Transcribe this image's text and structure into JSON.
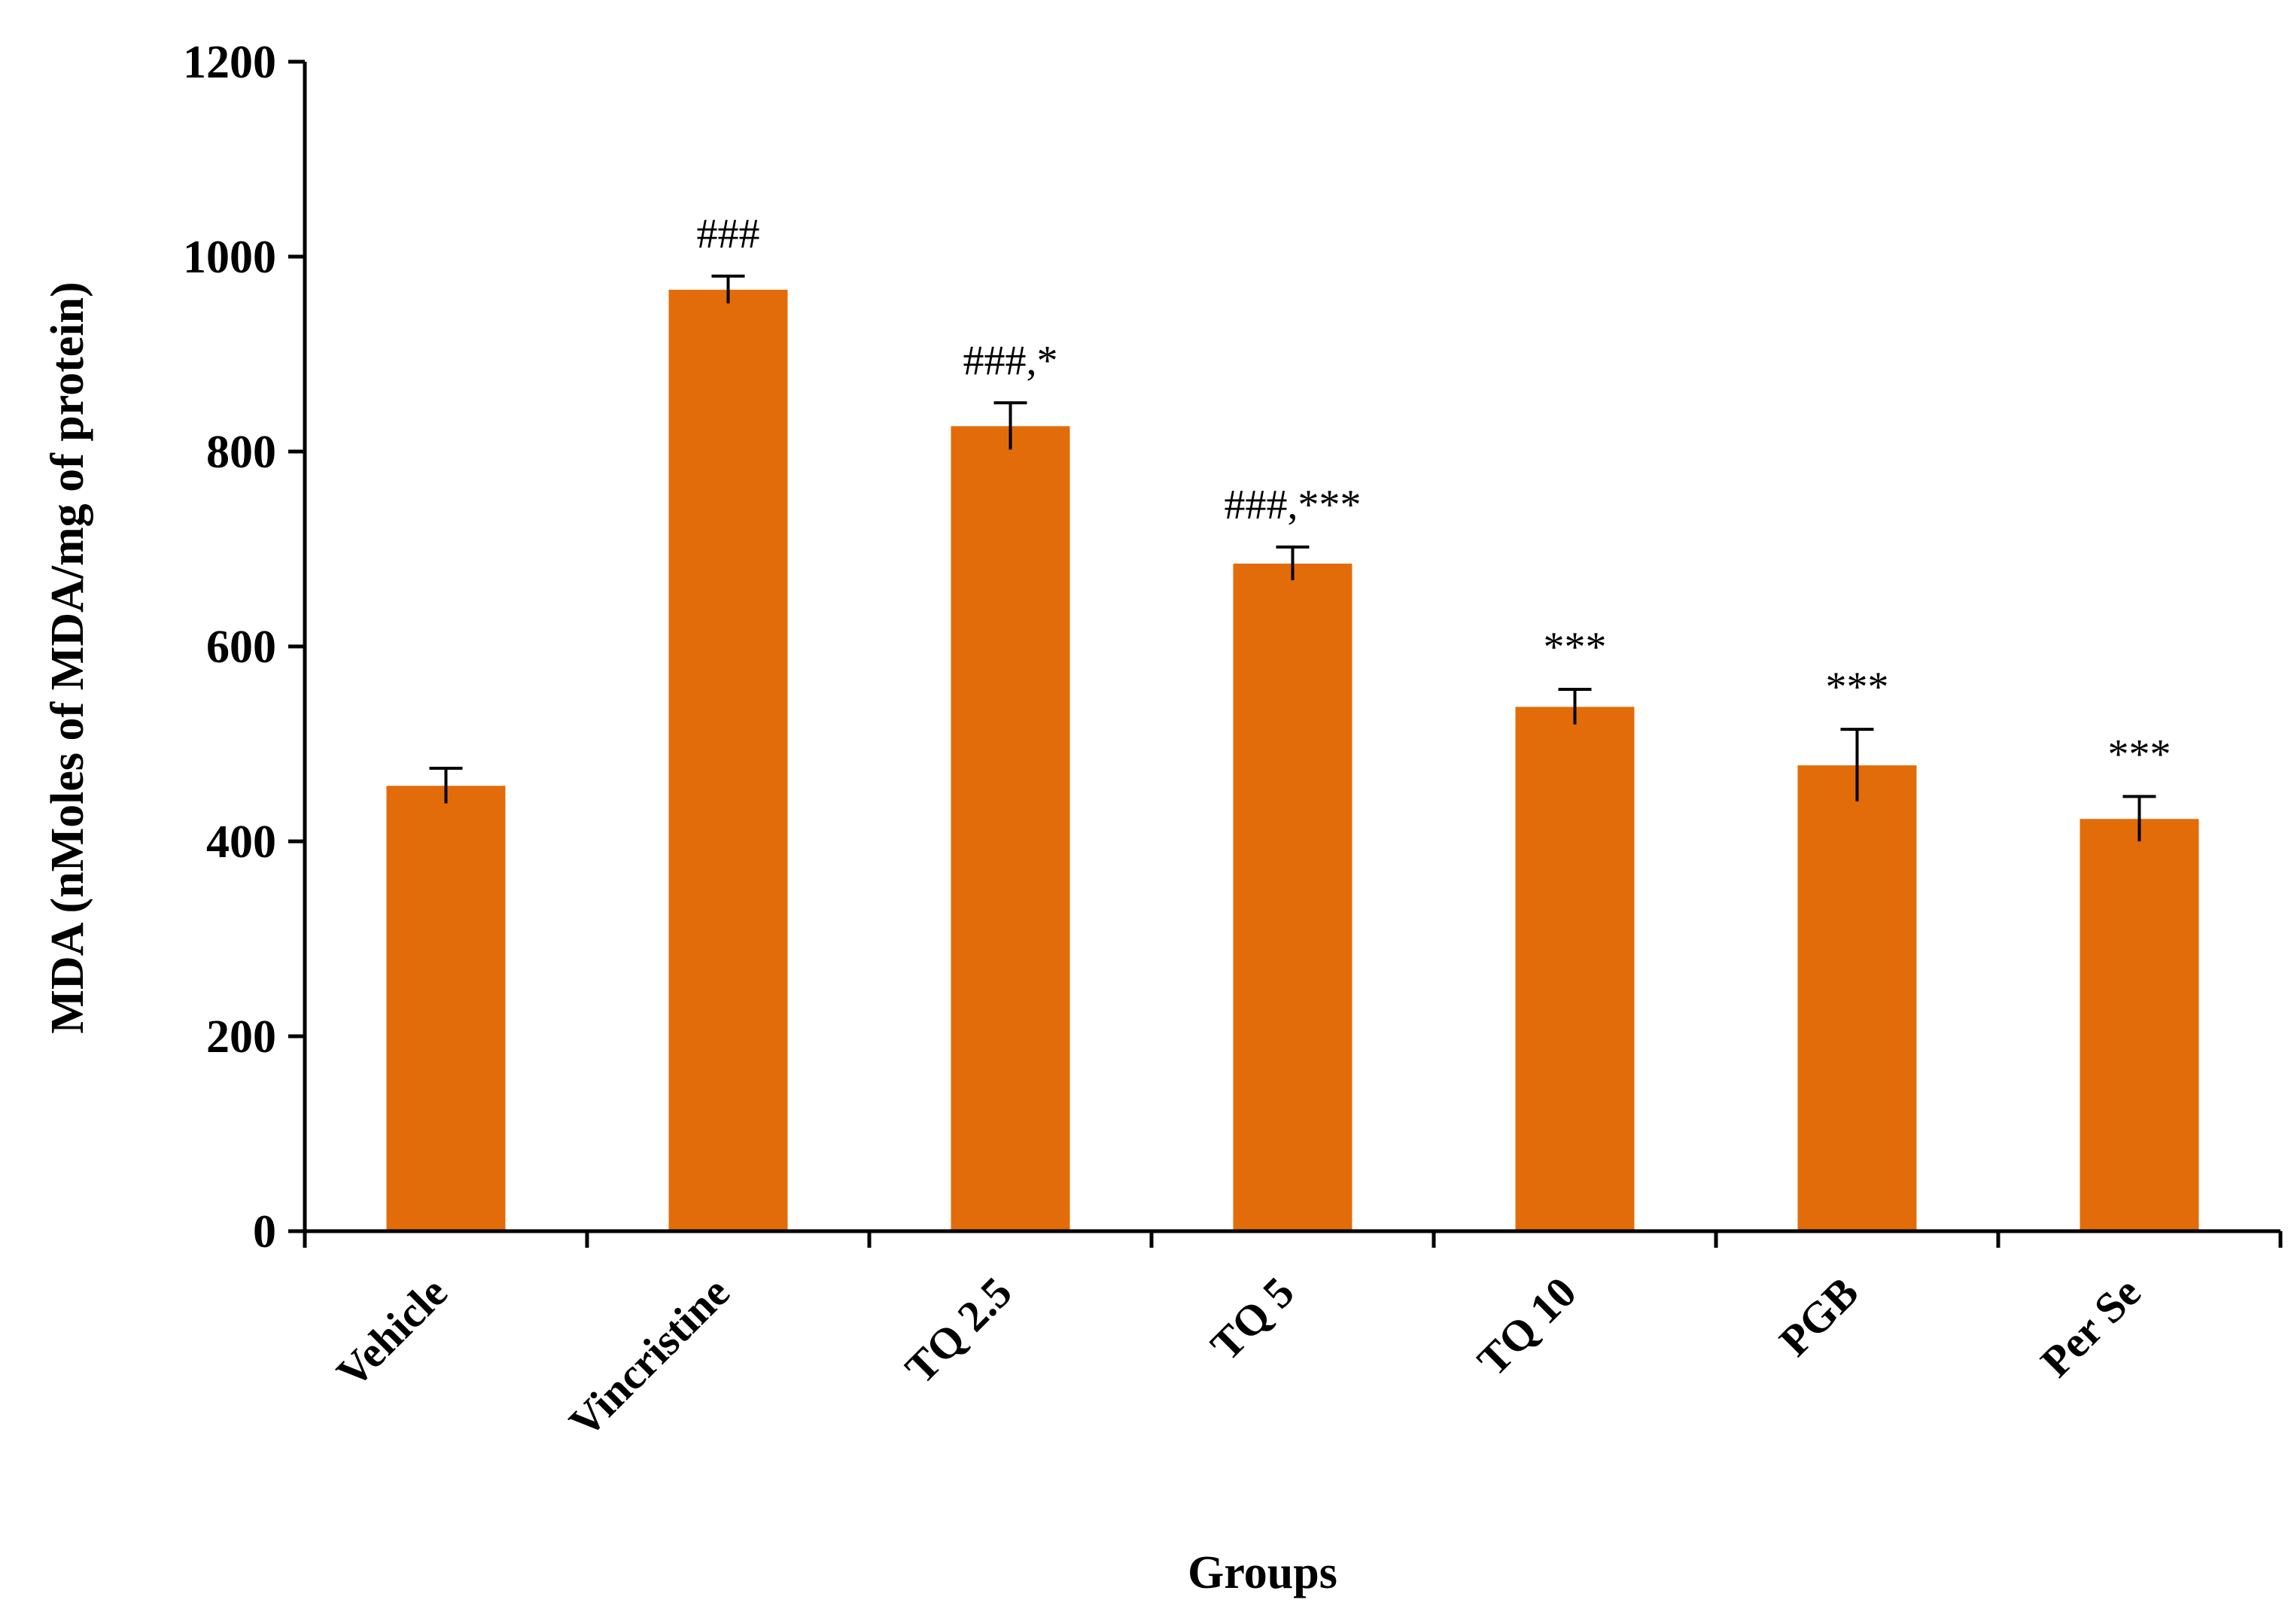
{
  "chart_data": {
    "type": "bar",
    "title": "",
    "xlabel": "Groups",
    "ylabel": "MDA (nMoles of MDA/mg of protein)",
    "ylim": [
      0,
      1200
    ],
    "yticks": [
      0,
      200,
      400,
      600,
      800,
      1000,
      1200
    ],
    "grid": false,
    "legend": "none",
    "bar_color": "#E36C0A",
    "categories": [
      "Vehicle",
      "Vincristine",
      "TQ 2.5",
      "TQ 5",
      "TQ 10",
      "PGB",
      "Per Se"
    ],
    "values": [
      457,
      966,
      826,
      685,
      538,
      478,
      423
    ],
    "errors": [
      18,
      14,
      24,
      17,
      18,
      37,
      23
    ],
    "annotations": [
      "",
      "###",
      "###,*",
      "###,***",
      "***",
      "***",
      "***"
    ]
  }
}
